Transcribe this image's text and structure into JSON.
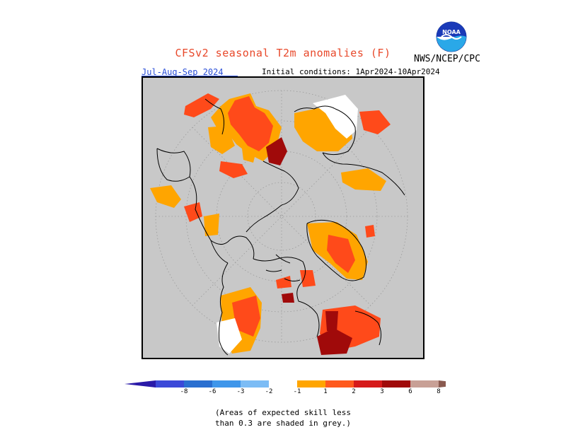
{
  "header": {
    "title": "CFSv2 seasonal T2m anomalies (F)",
    "agency": "NWS/NCEP/CPC",
    "season": "Jul-Aug-Sep 2024",
    "initial_conditions": "Initial conditions: 1Apr2024-10Apr2024",
    "logo_text": "NOAA"
  },
  "legend": {
    "ticks": [
      "-8",
      "-6",
      "-3",
      "-2",
      "-1",
      "1",
      "2",
      "3",
      "6",
      "8"
    ],
    "colors": [
      "#2a1aa8",
      "#3b49d8",
      "#2a6fd0",
      "#3f96ea",
      "#7cbcf5",
      "#ffffff",
      "#ffa500",
      "#ff5a1e",
      "#d61a1a",
      "#a00a0a",
      "#c8a096",
      "#8a5a50"
    ]
  },
  "note": {
    "line1": "(Areas of expected skill less",
    "line2": "than 0.3 are shaded in grey.)"
  },
  "map_colors": {
    "background": "#c8c8c8",
    "light": "#ffa500",
    "medium": "#ff4a1a",
    "strong": "#a00a0a",
    "white": "#ffffff"
  }
}
